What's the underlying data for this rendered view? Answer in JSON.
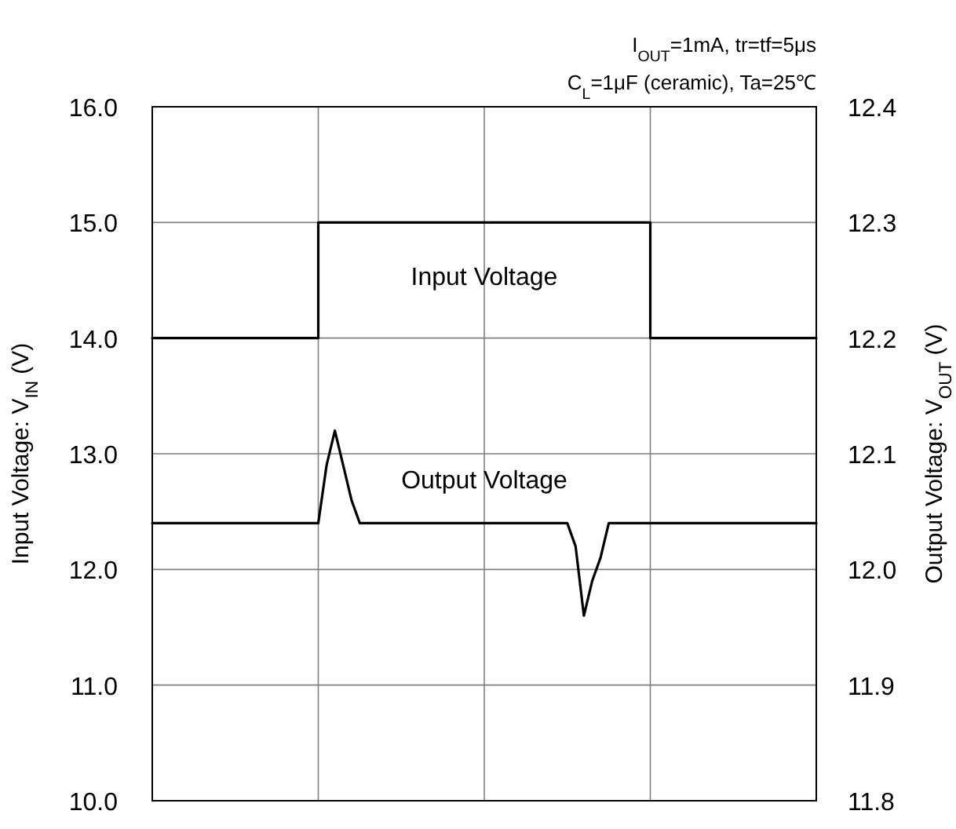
{
  "chart_data": {
    "type": "line",
    "ylabel": "Input Voltage: V$_{IN}$ (V)",
    "y2label": "Output Voltage: V$_{OUT}$ (V)",
    "annotations": [
      "I$_{OUT}$=1mA, tr=tf=5μs",
      "C$_{L}$=1μF (ceramic), Ta=25℃"
    ],
    "categories": [
      null,
      null,
      null,
      null,
      null,
      null,
      null,
      null,
      null,
      null,
      null,
      null,
      null,
      null,
      null,
      null,
      null,
      null,
      null,
      null,
      null,
      null,
      null,
      null,
      null,
      null,
      null,
      null,
      null,
      null,
      null,
      null,
      null,
      null,
      null,
      null,
      null,
      null,
      null,
      null,
      null,
      null,
      null,
      null,
      null,
      null,
      null,
      null,
      null,
      null,
      null,
      null,
      null,
      null,
      null,
      null,
      null,
      null,
      null,
      null,
      null,
      null,
      null,
      null,
      null,
      null,
      null,
      null,
      null,
      null,
      null,
      null,
      null,
      null,
      null,
      null,
      null,
      null,
      null,
      null,
      null
    ],
    "series": [
      {
        "name": "Input Voltage",
        "type": "step",
        "color": "#000000",
        "values": [
          14,
          14,
          14,
          14,
          14,
          14,
          14,
          14,
          14,
          14,
          14,
          14,
          14,
          14,
          14,
          14,
          14,
          14,
          14,
          14,
          15,
          15,
          15,
          15,
          15,
          15,
          15,
          15,
          15,
          15,
          15,
          15,
          15,
          15,
          15,
          15,
          15,
          15,
          15,
          15,
          15,
          15,
          15,
          15,
          15,
          15,
          15,
          15,
          15,
          15,
          15,
          15,
          15,
          15,
          15,
          15,
          15,
          15,
          15,
          15,
          14,
          14,
          14,
          14,
          14,
          14,
          14,
          14,
          14,
          14,
          14,
          14,
          14,
          14,
          14,
          14,
          14,
          14,
          14,
          14,
          14
        ]
      },
      {
        "name": "Output Voltage",
        "axis": "y2",
        "color": "#000000",
        "values": [
          12.04,
          12.04,
          12.04,
          12.04,
          12.04,
          12.04,
          12.04,
          12.04,
          12.04,
          12.04,
          12.04,
          12.04,
          12.04,
          12.04,
          12.04,
          12.04,
          12.04,
          12.04,
          12.04,
          12.04,
          12.04,
          12.09,
          12.12,
          12.09,
          12.06,
          12.04,
          12.04,
          12.04,
          12.04,
          12.04,
          12.04,
          12.04,
          12.04,
          12.04,
          12.04,
          12.04,
          12.04,
          12.04,
          12.04,
          12.04,
          12.04,
          12.04,
          12.04,
          12.04,
          12.04,
          12.04,
          12.04,
          12.04,
          12.04,
          12.04,
          12.04,
          12.02,
          11.96,
          11.99,
          12.01,
          12.04,
          12.04,
          12.04,
          12.04,
          12.04,
          12.04,
          12.04,
          12.04,
          12.04,
          12.04,
          12.04,
          12.04,
          12.04,
          12.04,
          12.04,
          12.04,
          12.04,
          12.04,
          12.04,
          12.04,
          12.04,
          12.04,
          12.04,
          12.04,
          12.04,
          12.04
        ]
      }
    ],
    "ylim": [
      10,
      16
    ],
    "yticks": [
      {
        "value": 10,
        "label": "10.0"
      },
      {
        "value": 11,
        "label": "11.0"
      },
      {
        "value": 12,
        "label": "12.0"
      },
      {
        "value": 13,
        "label": "13.0"
      },
      {
        "value": 14,
        "label": "14.0"
      },
      {
        "value": 15,
        "label": "15.0"
      },
      {
        "value": 16,
        "label": "16.0"
      }
    ],
    "y2lim": [
      11.8,
      12.4
    ],
    "y2ticks": [
      {
        "value": 11.8,
        "label": "11.8"
      },
      {
        "value": 11.9,
        "label": "11.9"
      },
      {
        "value": 12,
        "label": "12.0"
      },
      {
        "value": 12.1,
        "label": "12.1"
      },
      {
        "value": 12.2,
        "label": "12.2"
      },
      {
        "value": 12.3,
        "label": "12.3"
      },
      {
        "value": 12.4,
        "label": "12.4"
      }
    ],
    "grid": true,
    "tick_labels": "y"
  }
}
